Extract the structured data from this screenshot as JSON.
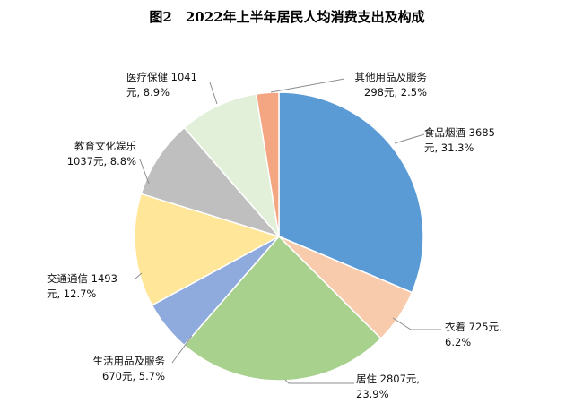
{
  "chart_data": {
    "type": "pie",
    "title": "图2　2022年上半年居民人均消费支出及构成",
    "unit": "元",
    "slices": [
      {
        "name": "食品烟酒",
        "value": 3685,
        "percent": 31.3,
        "color": "#5b9bd5",
        "line1": "食品烟酒 3685",
        "line2": "元, 31.3%"
      },
      {
        "name": "衣着",
        "value": 725,
        "percent": 6.2,
        "color": "#f8cbad",
        "line1": "衣着 725元,",
        "line2": "6.2%"
      },
      {
        "name": "居住",
        "value": 2807,
        "percent": 23.9,
        "color": "#a9d18e",
        "line1": "居住 2807元,",
        "line2": "23.9%"
      },
      {
        "name": "生活用品及服务",
        "value": 670,
        "percent": 5.7,
        "color": "#8faadc",
        "line1": "生活用品及服务",
        "line2": "670元, 5.7%"
      },
      {
        "name": "交通通信",
        "value": 1493,
        "percent": 12.7,
        "color": "#ffe699",
        "line1": "交通通信 1493",
        "line2": "元, 12.7%"
      },
      {
        "name": "教育文化娱乐",
        "value": 1037,
        "percent": 8.8,
        "color": "#bfbfbf",
        "line1": "教育文化娱乐",
        "line2": "1037元, 8.8%"
      },
      {
        "name": "医疗保健",
        "value": 1041,
        "percent": 8.9,
        "color": "#e2f0d9",
        "line1": "医疗保健 1041",
        "line2": "元, 8.9%"
      },
      {
        "name": "其他用品及服务",
        "value": 298,
        "percent": 2.5,
        "color": "#f4a582",
        "line1": "其他用品及服务",
        "line2": "298元, 2.5%"
      }
    ]
  }
}
